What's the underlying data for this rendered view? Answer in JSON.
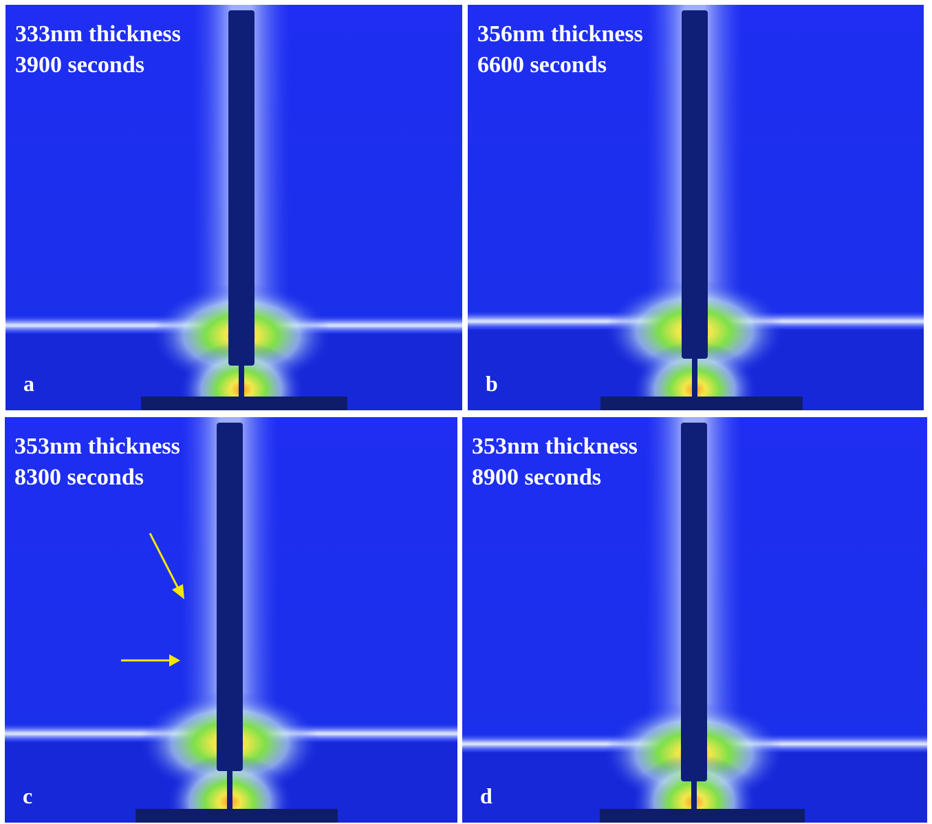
{
  "panels": [
    {
      "thickness": "333nm thickness",
      "time": "3900 seconds",
      "label": "a"
    },
    {
      "thickness": "356nm thickness",
      "time": "6600 seconds",
      "label": "b"
    },
    {
      "thickness": "353nm thickness",
      "time": "8300 seconds",
      "label": "c"
    },
    {
      "thickness": "353nm thickness",
      "time": "8900 seconds",
      "label": "d"
    }
  ]
}
